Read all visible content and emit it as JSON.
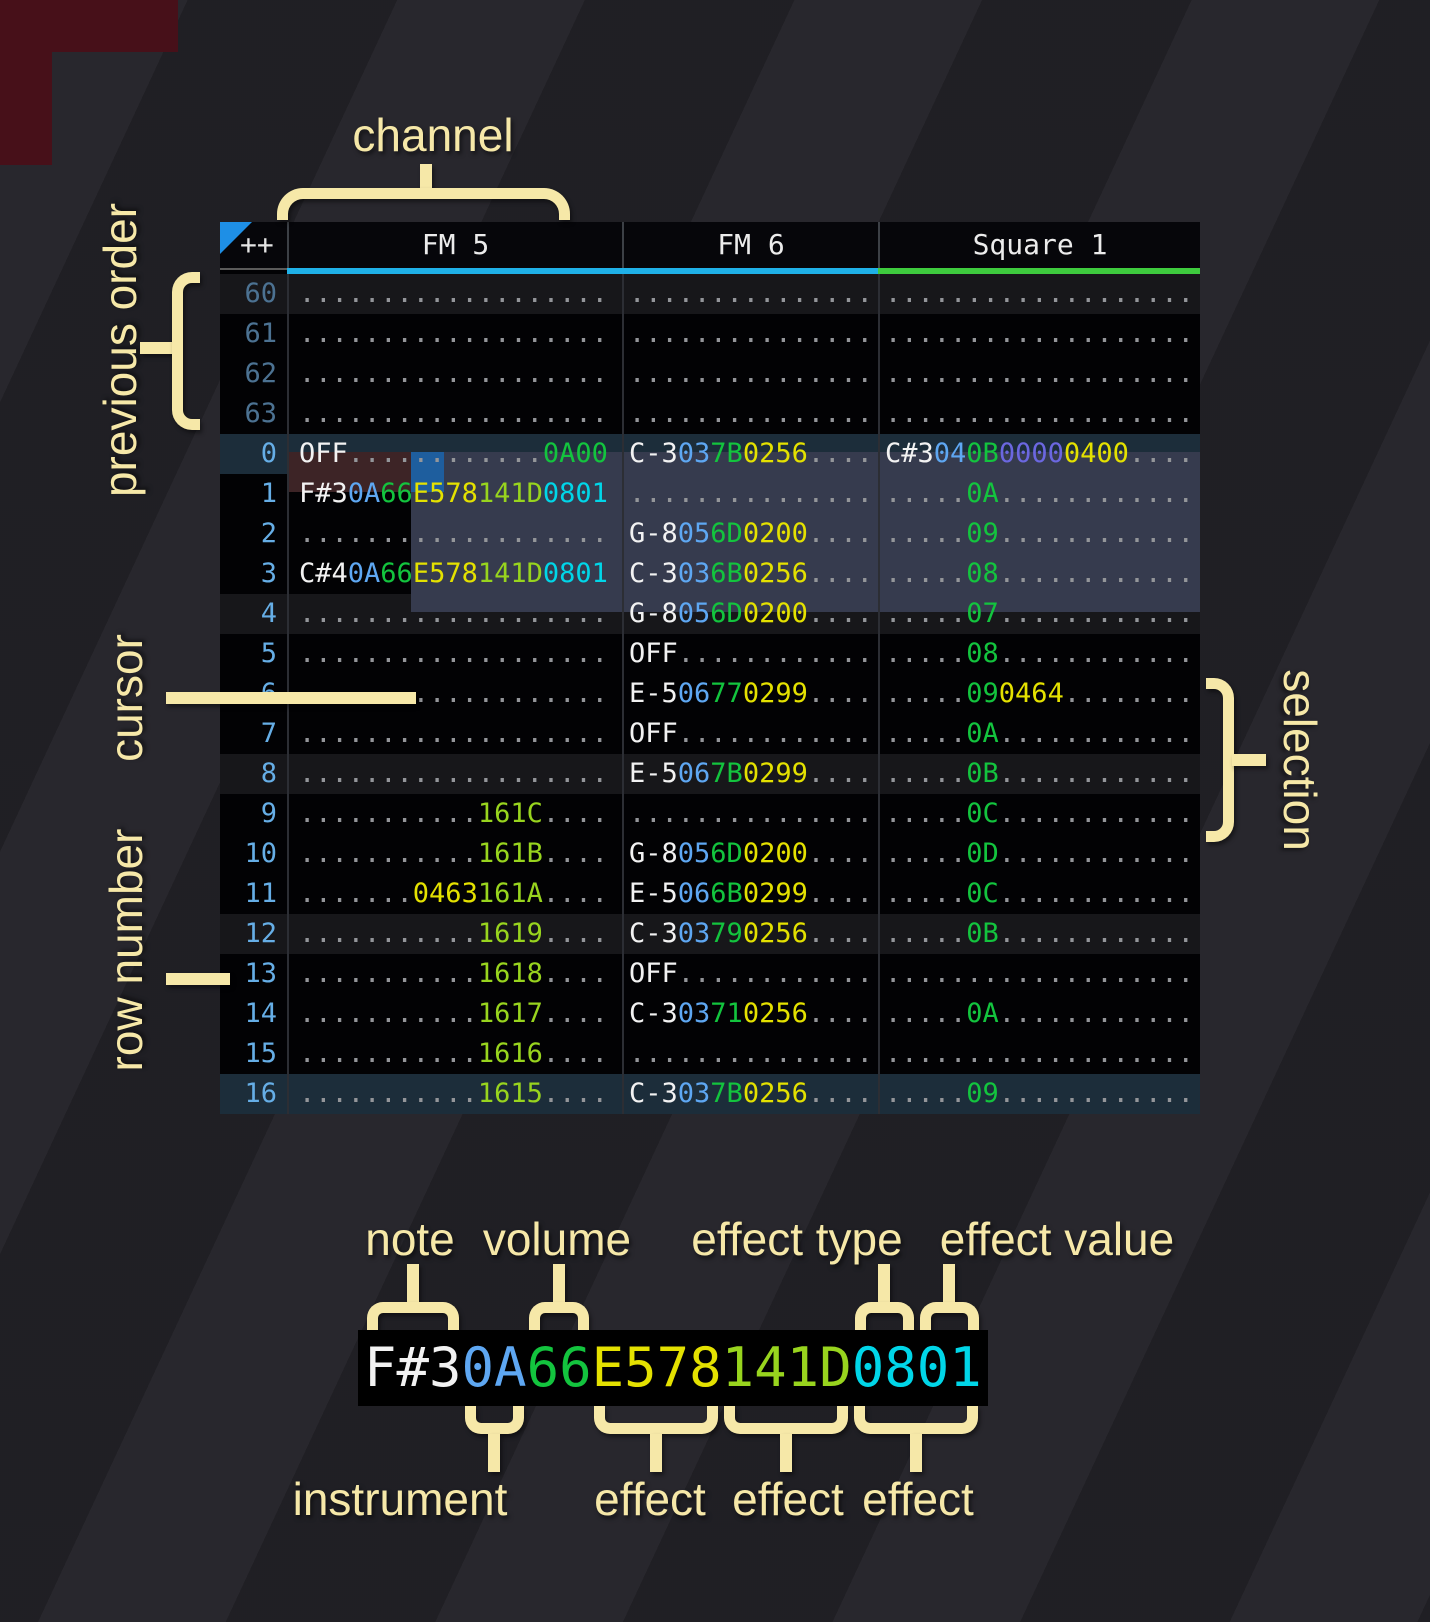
{
  "annotations": {
    "channel": "channel",
    "previous_order": "previous order",
    "cursor": "cursor",
    "row_number": "row number",
    "selection": "selection"
  },
  "legend": {
    "cell_text": "F#30A66E578141D0801",
    "segments": [
      [
        "note",
        "F#3"
      ],
      [
        "ins",
        "0A"
      ],
      [
        "vol",
        "66"
      ],
      [
        "effY",
        "E578"
      ],
      [
        "effL",
        "141D"
      ],
      [
        "effC",
        "0801"
      ]
    ],
    "top_labels": {
      "note": "note",
      "volume": "volume",
      "effect_type": "effect type",
      "effect_value": "effect value"
    },
    "bottom_labels": {
      "instrument": "instrument",
      "effect1": "effect",
      "effect2": "effect",
      "effect3": "effect"
    }
  },
  "tracker": {
    "corner": "++",
    "channels": [
      {
        "name": "FM 5",
        "underline": "#1fb1e8"
      },
      {
        "name": "FM 6",
        "underline": "#1fb1e8"
      },
      {
        "name": "Square 1",
        "underline": "#3ecb3e"
      }
    ],
    "rows": [
      {
        "num": "60",
        "dim": true,
        "bg": "alt",
        "c": [
          [
            [
              "dot",
              "..................."
            ]
          ],
          [
            [
              "dot",
              "..............."
            ]
          ],
          [
            [
              "dot",
              "..................."
            ]
          ]
        ]
      },
      {
        "num": "61",
        "dim": true,
        "c": [
          [
            [
              "dot",
              "..................."
            ]
          ],
          [
            [
              "dot",
              "..............."
            ]
          ],
          [
            [
              "dot",
              "..................."
            ]
          ]
        ]
      },
      {
        "num": "62",
        "dim": true,
        "c": [
          [
            [
              "dot",
              "..................."
            ]
          ],
          [
            [
              "dot",
              "..............."
            ]
          ],
          [
            [
              "dot",
              "..................."
            ]
          ]
        ]
      },
      {
        "num": "63",
        "dim": true,
        "c": [
          [
            [
              "dot",
              "..................."
            ]
          ],
          [
            [
              "dot",
              "..............."
            ]
          ],
          [
            [
              "dot",
              "..................."
            ]
          ]
        ]
      },
      {
        "num": "0",
        "bg": "hl",
        "c": [
          [
            [
              "note",
              "OFF"
            ],
            [
              "dot",
              "............"
            ],
            [
              "effG",
              "0A00"
            ]
          ],
          [
            [
              "note",
              "C-3"
            ],
            [
              "ins",
              "03"
            ],
            [
              "vol",
              "7B"
            ],
            [
              "effY",
              "0256"
            ],
            [
              "dot",
              "...."
            ]
          ],
          [
            [
              "note",
              "C#3"
            ],
            [
              "ins",
              "04"
            ],
            [
              "vol",
              "0B"
            ],
            [
              "effV",
              "0000"
            ],
            [
              "effY",
              "0400"
            ],
            [
              "dot",
              "...."
            ]
          ]
        ]
      },
      {
        "num": "1",
        "c": [
          [
            [
              "note",
              "F#3"
            ],
            [
              "ins",
              "0A"
            ],
            [
              "vol",
              "66"
            ],
            [
              "effY",
              "E578"
            ],
            [
              "effL",
              "141D"
            ],
            [
              "effC",
              "0801"
            ]
          ],
          [
            [
              "dot",
              "..............."
            ]
          ],
          [
            [
              "dot",
              "....."
            ],
            [
              "vol",
              "0A"
            ],
            [
              "dot",
              "............"
            ]
          ]
        ]
      },
      {
        "num": "2",
        "c": [
          [
            [
              "dot",
              "..................."
            ]
          ],
          [
            [
              "note",
              "G-8"
            ],
            [
              "ins",
              "05"
            ],
            [
              "vol",
              "6D"
            ],
            [
              "effY",
              "0200"
            ],
            [
              "dot",
              "...."
            ]
          ],
          [
            [
              "dot",
              "....."
            ],
            [
              "vol",
              "09"
            ],
            [
              "dot",
              "............"
            ]
          ]
        ]
      },
      {
        "num": "3",
        "c": [
          [
            [
              "note",
              "C#4"
            ],
            [
              "ins",
              "0A"
            ],
            [
              "vol",
              "66"
            ],
            [
              "effY",
              "E578"
            ],
            [
              "effL",
              "141D"
            ],
            [
              "effC",
              "0801"
            ]
          ],
          [
            [
              "note",
              "C-3"
            ],
            [
              "ins",
              "03"
            ],
            [
              "vol",
              "6B"
            ],
            [
              "effY",
              "0256"
            ],
            [
              "dot",
              "...."
            ]
          ],
          [
            [
              "dot",
              "....."
            ],
            [
              "vol",
              "08"
            ],
            [
              "dot",
              "............"
            ]
          ]
        ]
      },
      {
        "num": "4",
        "bg": "alt",
        "c": [
          [
            [
              "dot",
              "..................."
            ]
          ],
          [
            [
              "note",
              "G-8"
            ],
            [
              "ins",
              "05"
            ],
            [
              "vol",
              "6D"
            ],
            [
              "effY",
              "0200"
            ],
            [
              "dot",
              "...."
            ]
          ],
          [
            [
              "dot",
              "....."
            ],
            [
              "vol",
              "07"
            ],
            [
              "dot",
              "............"
            ]
          ]
        ]
      },
      {
        "num": "5",
        "c": [
          [
            [
              "dot",
              "..................."
            ]
          ],
          [
            [
              "note",
              "OFF"
            ],
            [
              "dot",
              "............"
            ]
          ],
          [
            [
              "dot",
              "....."
            ],
            [
              "vol",
              "08"
            ],
            [
              "dot",
              "............"
            ]
          ]
        ]
      },
      {
        "num": "6",
        "c": [
          [
            [
              "dot",
              "..................."
            ]
          ],
          [
            [
              "note",
              "E-5"
            ],
            [
              "ins",
              "06"
            ],
            [
              "vol",
              "77"
            ],
            [
              "effY",
              "0299"
            ],
            [
              "dot",
              "...."
            ]
          ],
          [
            [
              "dot",
              "....."
            ],
            [
              "vol",
              "09"
            ],
            [
              "effY",
              "0464"
            ],
            [
              "dot",
              "........"
            ]
          ]
        ]
      },
      {
        "num": "7",
        "c": [
          [
            [
              "dot",
              "..................."
            ]
          ],
          [
            [
              "note",
              "OFF"
            ],
            [
              "dot",
              "............"
            ]
          ],
          [
            [
              "dot",
              "....."
            ],
            [
              "vol",
              "0A"
            ],
            [
              "dot",
              "............"
            ]
          ]
        ]
      },
      {
        "num": "8",
        "bg": "alt",
        "c": [
          [
            [
              "dot",
              "..................."
            ]
          ],
          [
            [
              "note",
              "E-5"
            ],
            [
              "ins",
              "06"
            ],
            [
              "vol",
              "7B"
            ],
            [
              "effY",
              "0299"
            ],
            [
              "dot",
              "...."
            ]
          ],
          [
            [
              "dot",
              "....."
            ],
            [
              "vol",
              "0B"
            ],
            [
              "dot",
              "............"
            ]
          ]
        ]
      },
      {
        "num": "9",
        "c": [
          [
            [
              "dot",
              "..........."
            ],
            [
              "effL",
              "161C"
            ],
            [
              "dot",
              "...."
            ]
          ],
          [
            [
              "dot",
              "..............."
            ]
          ],
          [
            [
              "dot",
              "....."
            ],
            [
              "vol",
              "0C"
            ],
            [
              "dot",
              "............"
            ]
          ]
        ]
      },
      {
        "num": "10",
        "c": [
          [
            [
              "dot",
              "..........."
            ],
            [
              "effL",
              "161B"
            ],
            [
              "dot",
              "...."
            ]
          ],
          [
            [
              "note",
              "G-8"
            ],
            [
              "ins",
              "05"
            ],
            [
              "vol",
              "6D"
            ],
            [
              "effY",
              "0200"
            ],
            [
              "dot",
              "...."
            ]
          ],
          [
            [
              "dot",
              "....."
            ],
            [
              "vol",
              "0D"
            ],
            [
              "dot",
              "............"
            ]
          ]
        ]
      },
      {
        "num": "11",
        "c": [
          [
            [
              "dot",
              "......."
            ],
            [
              "effY",
              "0463"
            ],
            [
              "effL",
              "161A"
            ],
            [
              "dot",
              "...."
            ]
          ],
          [
            [
              "note",
              "E-5"
            ],
            [
              "ins",
              "06"
            ],
            [
              "vol",
              "6B"
            ],
            [
              "effY",
              "0299"
            ],
            [
              "dot",
              "...."
            ]
          ],
          [
            [
              "dot",
              "....."
            ],
            [
              "vol",
              "0C"
            ],
            [
              "dot",
              "............"
            ]
          ]
        ]
      },
      {
        "num": "12",
        "bg": "alt",
        "c": [
          [
            [
              "dot",
              "..........."
            ],
            [
              "effL",
              "1619"
            ],
            [
              "dot",
              "...."
            ]
          ],
          [
            [
              "note",
              "C-3"
            ],
            [
              "ins",
              "03"
            ],
            [
              "vol",
              "79"
            ],
            [
              "effY",
              "0256"
            ],
            [
              "dot",
              "...."
            ]
          ],
          [
            [
              "dot",
              "....."
            ],
            [
              "vol",
              "0B"
            ],
            [
              "dot",
              "............"
            ]
          ]
        ]
      },
      {
        "num": "13",
        "c": [
          [
            [
              "dot",
              "..........."
            ],
            [
              "effL",
              "1618"
            ],
            [
              "dot",
              "...."
            ]
          ],
          [
            [
              "note",
              "OFF"
            ],
            [
              "dot",
              "............"
            ]
          ],
          [
            [
              "dot",
              "..................."
            ]
          ]
        ]
      },
      {
        "num": "14",
        "c": [
          [
            [
              "dot",
              "..........."
            ],
            [
              "effL",
              "1617"
            ],
            [
              "dot",
              "...."
            ]
          ],
          [
            [
              "note",
              "C-3"
            ],
            [
              "ins",
              "03"
            ],
            [
              "vol",
              "71"
            ],
            [
              "effY",
              "0256"
            ],
            [
              "dot",
              "...."
            ]
          ],
          [
            [
              "dot",
              "....."
            ],
            [
              "vol",
              "0A"
            ],
            [
              "dot",
              "............"
            ]
          ]
        ]
      },
      {
        "num": "15",
        "c": [
          [
            [
              "dot",
              "..........."
            ],
            [
              "effL",
              "1616"
            ],
            [
              "dot",
              "...."
            ]
          ],
          [
            [
              "dot",
              "..............."
            ]
          ],
          [
            [
              "dot",
              "..................."
            ]
          ]
        ]
      },
      {
        "num": "16",
        "bg": "hl",
        "c": [
          [
            [
              "dot",
              "..........."
            ],
            [
              "effL",
              "1615"
            ],
            [
              "dot",
              "...."
            ]
          ],
          [
            [
              "note",
              "C-3"
            ],
            [
              "ins",
              "03"
            ],
            [
              "vol",
              "7B"
            ],
            [
              "effY",
              "0256"
            ],
            [
              "dot",
              "...."
            ]
          ],
          [
            [
              "dot",
              "....."
            ],
            [
              "vol",
              "09"
            ],
            [
              "dot",
              "............"
            ]
          ]
        ]
      }
    ]
  },
  "colors": {
    "note": "#f2f2f2",
    "ins": "#5ea7f2",
    "vol": "#13c43e",
    "effY": "#e4e100",
    "effL": "#98d41e",
    "effC": "#00d6e8",
    "effV": "#6b67e0",
    "effG": "#13c43e",
    "dot": "#94969a",
    "selection": "#363b4e",
    "cursor": "#1e5e9e",
    "cursor_row": "#3d2426",
    "annotation": "#f6e8a8"
  }
}
